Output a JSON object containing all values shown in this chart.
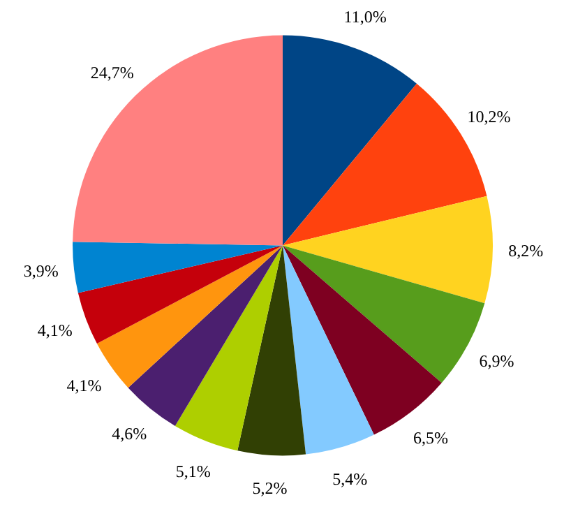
{
  "chart_data": {
    "type": "pie",
    "categories": [
      null,
      null,
      null,
      null,
      null,
      null,
      null,
      null,
      null,
      null,
      null,
      null,
      null
    ],
    "values": [
      11.0,
      10.2,
      8.2,
      6.9,
      6.5,
      5.4,
      5.2,
      5.1,
      4.6,
      4.1,
      4.1,
      3.9,
      24.7
    ],
    "value_labels": [
      "11,0%",
      "10,2%",
      "8,2%",
      "6,9%",
      "6,5%",
      "5,4%",
      "5,2%",
      "5,1%",
      "4,6%",
      "4,1%",
      "4,1%",
      "3,9%",
      "24,7%"
    ],
    "colors": [
      "#004586",
      "#ff420e",
      "#ffd320",
      "#579d1c",
      "#7e0021",
      "#83caff",
      "#314004",
      "#aecf00",
      "#4b1f6f",
      "#ff950e",
      "#c5000b",
      "#0084d1",
      "#ff8080"
    ]
  }
}
